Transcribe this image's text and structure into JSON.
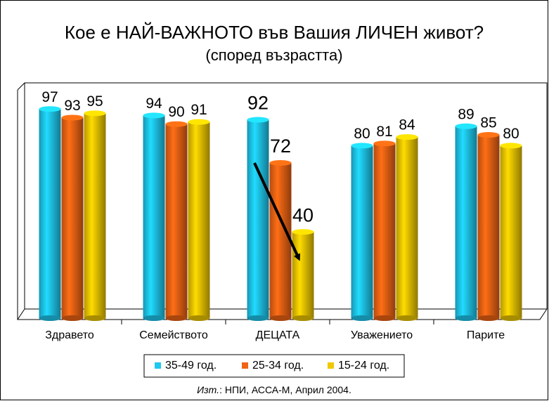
{
  "chart_data": {
    "type": "bar",
    "title": "Кое е НАЙ-ВАЖНОТО във Вашия ЛИЧЕН живот?",
    "subtitle": "(според възрастта)",
    "categories": [
      "Здравето",
      "Семейството",
      "ДЕЦАТА",
      "Уважението",
      "Парите"
    ],
    "series": [
      {
        "name": "35-49 год.",
        "color": "#1ec8f0",
        "values": [
          97,
          94,
          92,
          80,
          89
        ]
      },
      {
        "name": "25-34 год.",
        "color": "#f06414",
        "values": [
          93,
          90,
          72,
          81,
          85
        ]
      },
      {
        "name": "15-24 год.",
        "color": "#f0c800",
        "values": [
          95,
          91,
          40,
          84,
          80
        ]
      }
    ],
    "ylim": [
      0,
      100
    ],
    "source_prefix": "Изт.",
    "source": ": НПИ, АССА-М, Април 2004."
  }
}
